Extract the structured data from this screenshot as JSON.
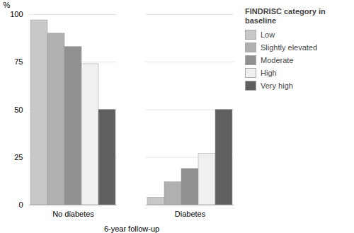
{
  "chart_data": {
    "type": "bar",
    "categories": [
      "No diabetes",
      "Diabetes"
    ],
    "series": [
      {
        "name": "Low",
        "color": "#c8c8c8",
        "values": [
          97,
          4
        ]
      },
      {
        "name": "Slightly elevated",
        "color": "#b0b0b0",
        "values": [
          90,
          12
        ]
      },
      {
        "name": "Moderate",
        "color": "#909090",
        "values": [
          83,
          19
        ]
      },
      {
        "name": "High",
        "color": "#f0f0f0",
        "values": [
          74,
          27
        ]
      },
      {
        "name": "Very high",
        "color": "#606060",
        "values": [
          50,
          50
        ]
      }
    ],
    "xlabel": "6-year follow-up",
    "ylabel": "%",
    "legend_title": "FINDRISC category in baseline",
    "legend": "upper right",
    "ylim": [
      0,
      100
    ],
    "yticks": [
      0,
      25,
      50,
      75,
      100
    ],
    "grid": true
  }
}
